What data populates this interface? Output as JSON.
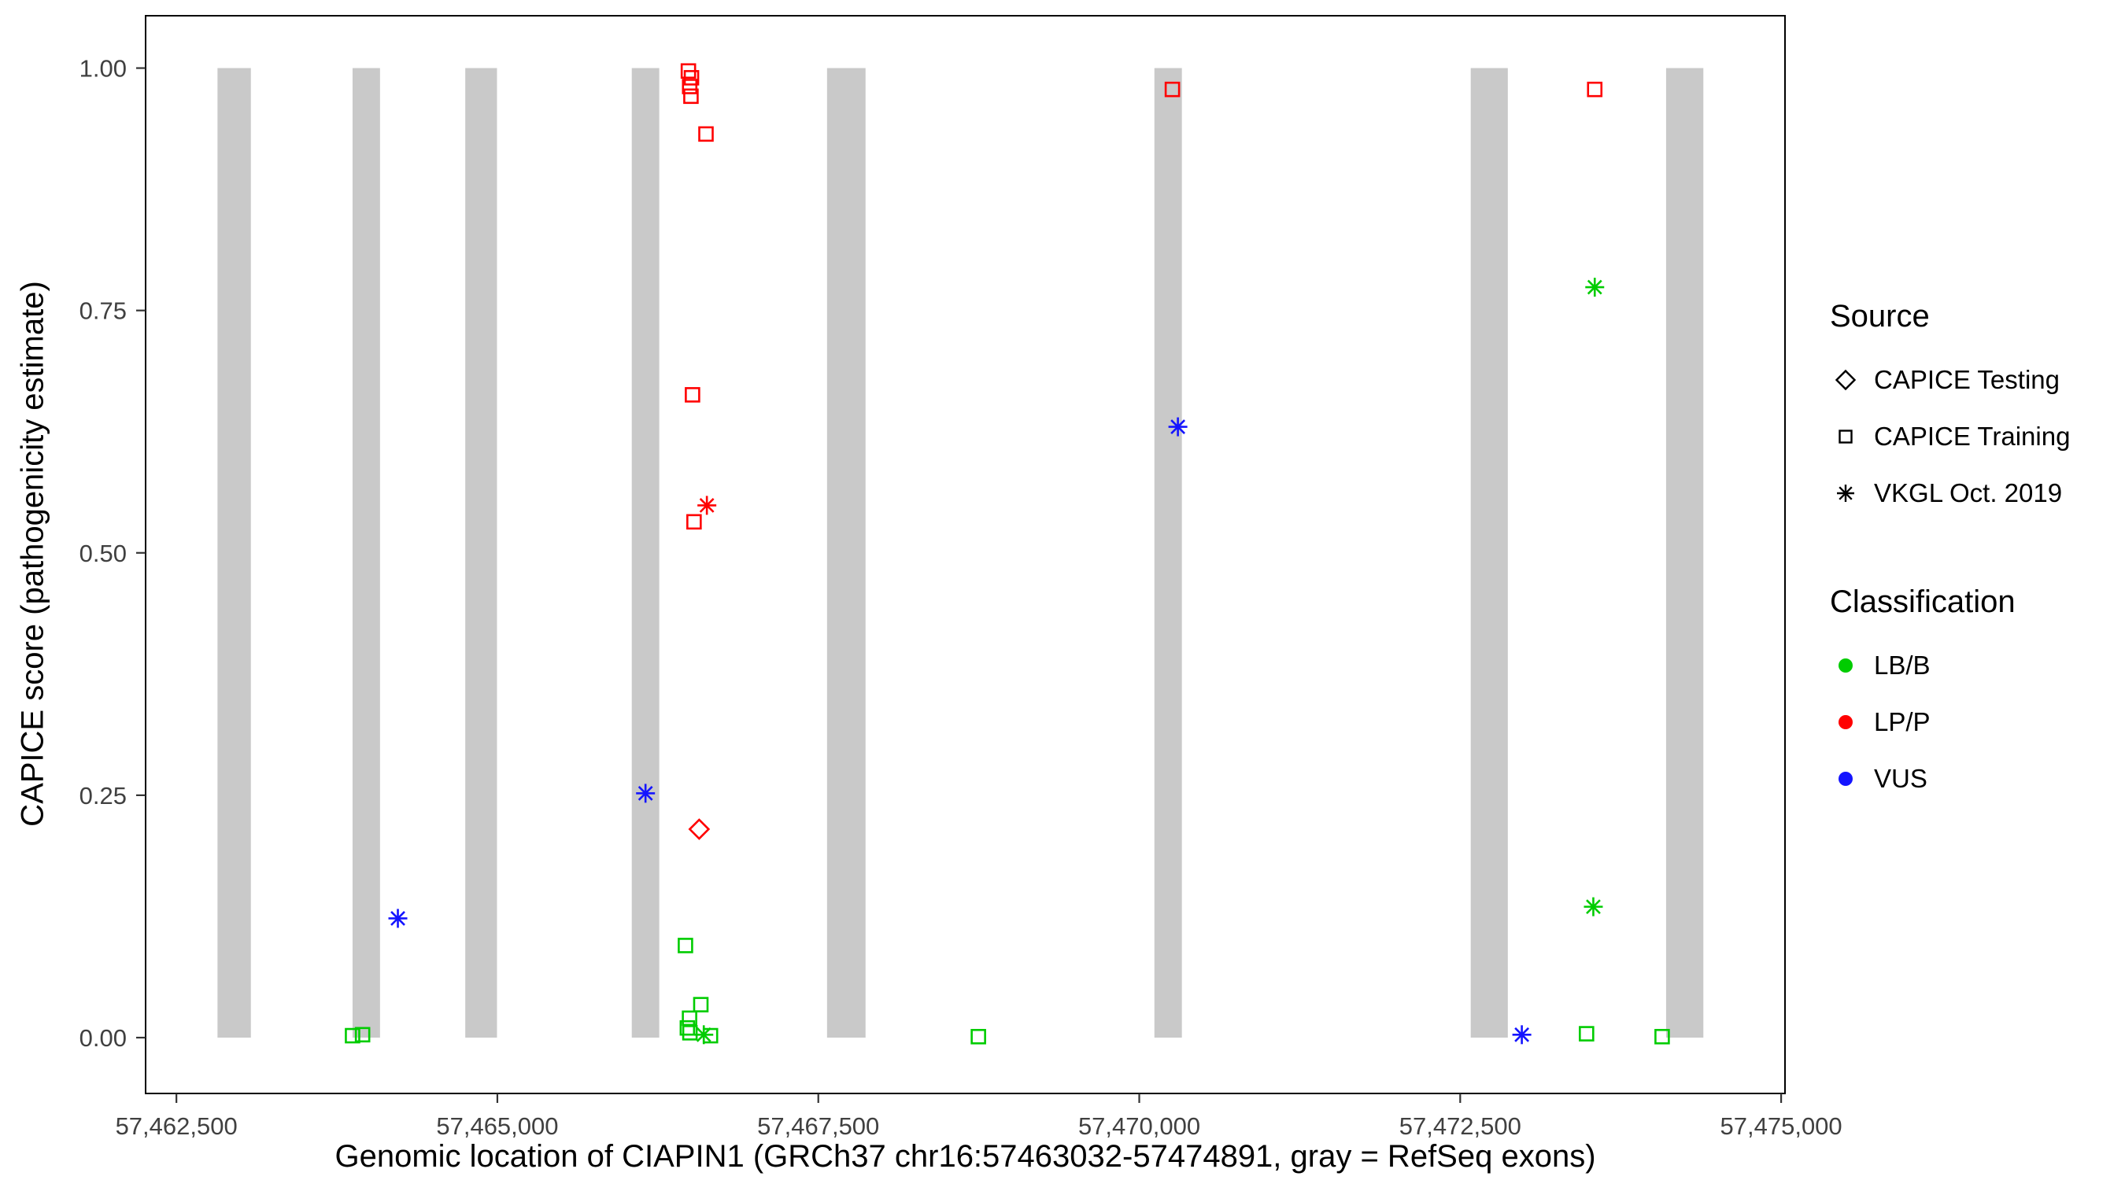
{
  "chart_data": {
    "type": "scatter",
    "title": "",
    "xlabel": "Genomic location of CIAPIN1 (GRCh37 chr16:57463032-57474891, gray = RefSeq exons)",
    "ylabel": "CAPICE score (pathogenicity estimate)",
    "xlim": [
      57462260,
      57475030
    ],
    "ylim": [
      -0.0576,
      1.054
    ],
    "grid": false,
    "legend_position": "right",
    "x_ticks": [
      {
        "value": 57462500,
        "label": "57,462,500"
      },
      {
        "value": 57465000,
        "label": "57,465,000"
      },
      {
        "value": 57467500,
        "label": "57,467,500"
      },
      {
        "value": 57470000,
        "label": "57,470,000"
      },
      {
        "value": 57472500,
        "label": "57,472,500"
      },
      {
        "value": 57475000,
        "label": "57,475,000"
      }
    ],
    "y_ticks": [
      {
        "value": 0.0,
        "label": "0.00"
      },
      {
        "value": 0.25,
        "label": "0.25"
      },
      {
        "value": 0.5,
        "label": "0.50"
      },
      {
        "value": 0.75,
        "label": "0.75"
      },
      {
        "value": 1.0,
        "label": "1.00"
      }
    ],
    "exon_color": "#C9C9C9",
    "exons": [
      {
        "start": 57462820,
        "end": 57463080
      },
      {
        "start": 57463872,
        "end": 57464086
      },
      {
        "start": 57464750,
        "end": 57464997
      },
      {
        "start": 57466047,
        "end": 57466261
      },
      {
        "start": 57467568,
        "end": 57467868
      },
      {
        "start": 57470118,
        "end": 57470332
      },
      {
        "start": 57472582,
        "end": 57472871
      },
      {
        "start": 57474104,
        "end": 57474394
      }
    ],
    "colors": {
      "LB/B": "#00CC00",
      "LP/P": "#FF0000",
      "VUS": "#1414FF"
    },
    "shapes": {
      "CAPICE Testing": "diamond",
      "CAPICE Training": "square",
      "VKGL Oct. 2019": "asterisk"
    },
    "points": [
      {
        "x": 57466488,
        "y": 0.997,
        "classification": "LP/P",
        "source": "CAPICE Training"
      },
      {
        "x": 57466512,
        "y": 0.99,
        "classification": "LP/P",
        "source": "CAPICE Training"
      },
      {
        "x": 57466498,
        "y": 0.981,
        "classification": "LP/P",
        "source": "CAPICE Training"
      },
      {
        "x": 57466508,
        "y": 0.971,
        "classification": "LP/P",
        "source": "CAPICE Training"
      },
      {
        "x": 57466625,
        "y": 0.932,
        "classification": "LP/P",
        "source": "CAPICE Training"
      },
      {
        "x": 57466520,
        "y": 0.663,
        "classification": "LP/P",
        "source": "CAPICE Training"
      },
      {
        "x": 57466532,
        "y": 0.532,
        "classification": "LP/P",
        "source": "CAPICE Training"
      },
      {
        "x": 57470258,
        "y": 0.978,
        "classification": "LP/P",
        "source": "CAPICE Training"
      },
      {
        "x": 57473548,
        "y": 0.978,
        "classification": "LP/P",
        "source": "CAPICE Training"
      },
      {
        "x": 57466632,
        "y": 0.549,
        "classification": "LP/P",
        "source": "VKGL Oct. 2019"
      },
      {
        "x": 57466572,
        "y": 0.215,
        "classification": "LP/P",
        "source": "CAPICE Testing"
      },
      {
        "x": 57464225,
        "y": 0.123,
        "classification": "VUS",
        "source": "VKGL Oct. 2019"
      },
      {
        "x": 57466154,
        "y": 0.252,
        "classification": "VUS",
        "source": "VKGL Oct. 2019"
      },
      {
        "x": 57470301,
        "y": 0.63,
        "classification": "VUS",
        "source": "VKGL Oct. 2019"
      },
      {
        "x": 57472980,
        "y": 0.003,
        "classification": "VUS",
        "source": "VKGL Oct. 2019"
      },
      {
        "x": 57473548,
        "y": 0.774,
        "classification": "LB/B",
        "source": "VKGL Oct. 2019"
      },
      {
        "x": 57473537,
        "y": 0.135,
        "classification": "LB/B",
        "source": "VKGL Oct. 2019"
      },
      {
        "x": 57466608,
        "y": 0.003,
        "classification": "LB/B",
        "source": "VKGL Oct. 2019"
      },
      {
        "x": 57463872,
        "y": 0.002,
        "classification": "LB/B",
        "source": "CAPICE Training"
      },
      {
        "x": 57463950,
        "y": 0.003,
        "classification": "LB/B",
        "source": "CAPICE Training"
      },
      {
        "x": 57466465,
        "y": 0.095,
        "classification": "LB/B",
        "source": "CAPICE Training"
      },
      {
        "x": 57466585,
        "y": 0.034,
        "classification": "LB/B",
        "source": "CAPICE Training"
      },
      {
        "x": 57466497,
        "y": 0.02,
        "classification": "LB/B",
        "source": "CAPICE Training"
      },
      {
        "x": 57466480,
        "y": 0.01,
        "classification": "LB/B",
        "source": "CAPICE Training"
      },
      {
        "x": 57466500,
        "y": 0.005,
        "classification": "LB/B",
        "source": "CAPICE Training"
      },
      {
        "x": 57466660,
        "y": 0.002,
        "classification": "LB/B",
        "source": "CAPICE Training"
      },
      {
        "x": 57468747,
        "y": 0.001,
        "classification": "LB/B",
        "source": "CAPICE Training"
      },
      {
        "x": 57473484,
        "y": 0.004,
        "classification": "LB/B",
        "source": "CAPICE Training"
      },
      {
        "x": 57474073,
        "y": 0.001,
        "classification": "LB/B",
        "source": "CAPICE Training"
      }
    ]
  },
  "legend": {
    "source_title": "Source",
    "source_items": [
      "CAPICE Testing",
      "CAPICE Training",
      "VKGL Oct. 2019"
    ],
    "classification_title": "Classification",
    "classification_items": [
      "LB/B",
      "LP/P",
      "VUS"
    ]
  }
}
